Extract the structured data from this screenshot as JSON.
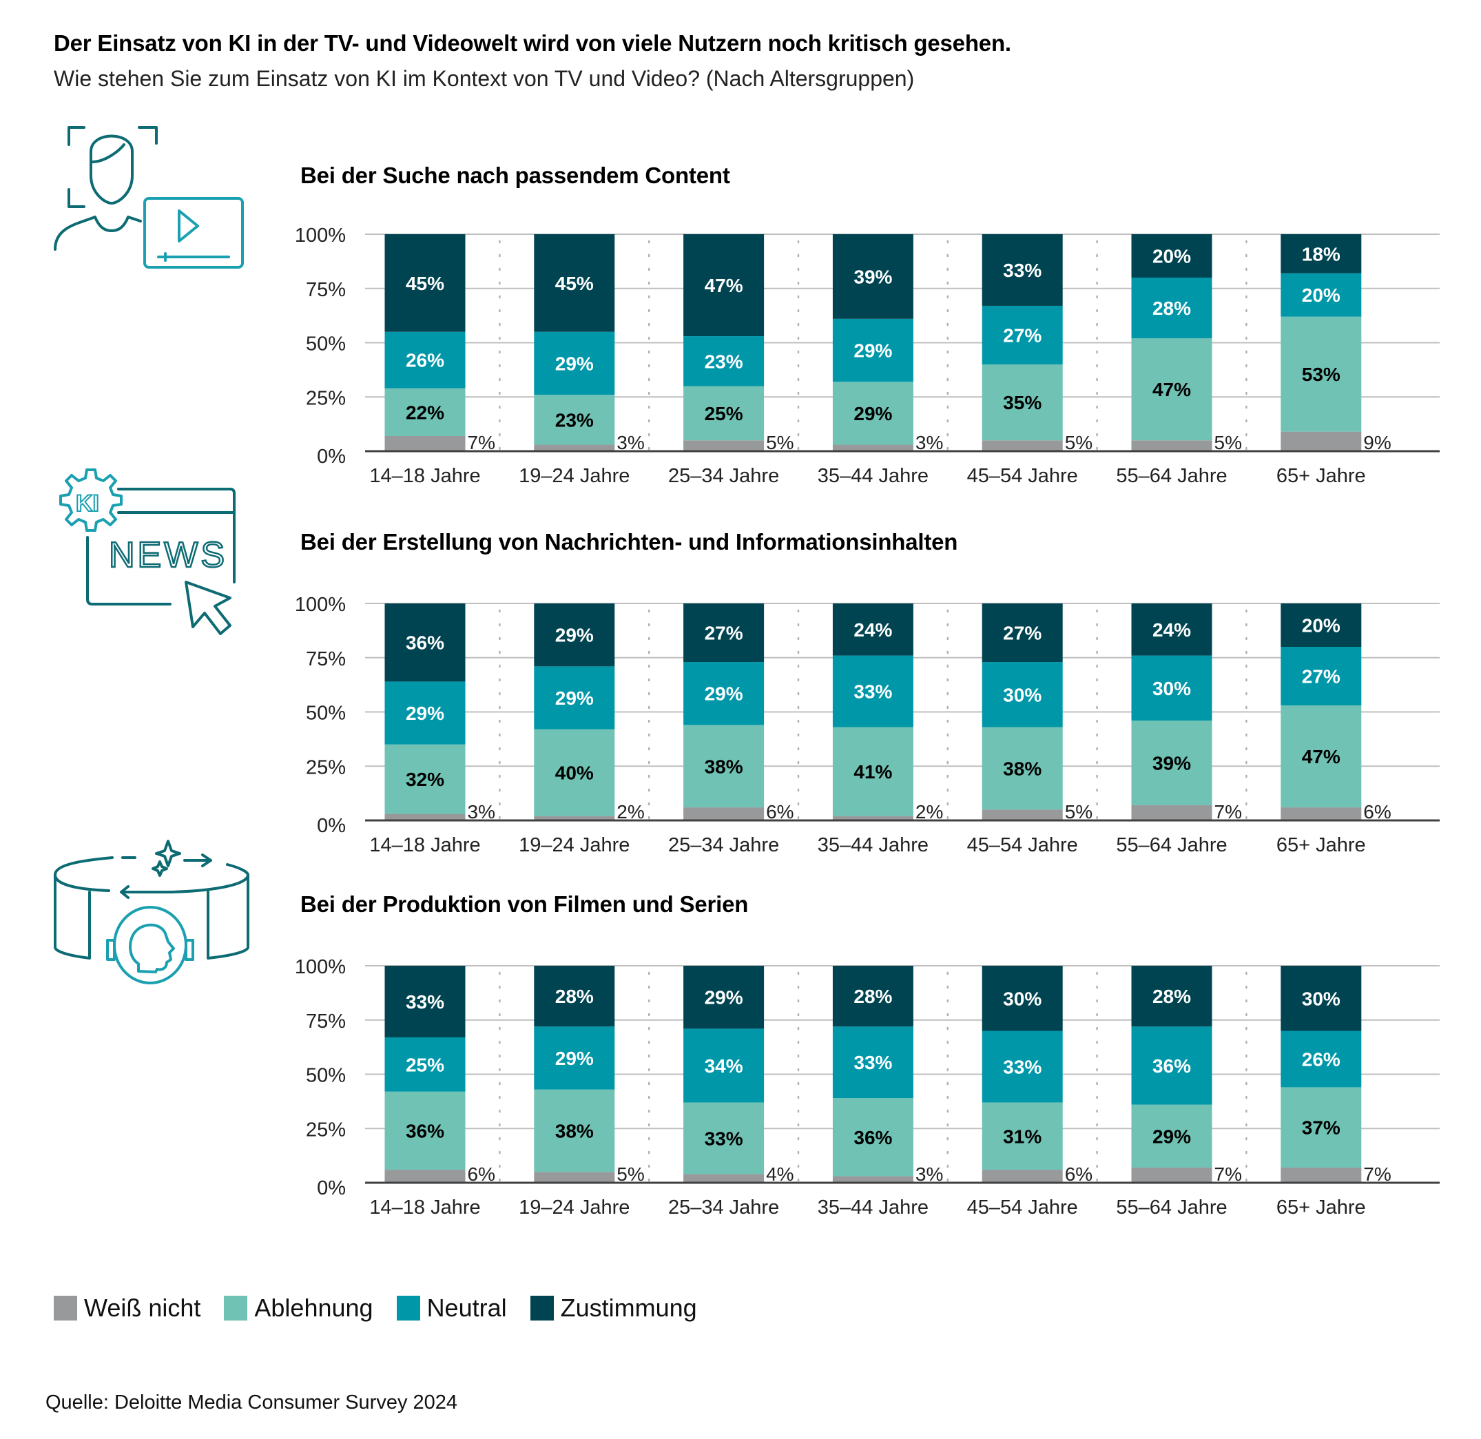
{
  "title": "Der Einsatz von KI in der TV- und Videowelt wird von viele Nutzern noch kritisch gesehen.",
  "subtitle": "Wie stehen Sie zum Einsatz von KI im Kontext von TV und Video? (Nach Altersgruppen)",
  "colors": {
    "weiss_nicht": "#97999b",
    "ablehnung": "#6fc2b4",
    "neutral": "#0097a9",
    "zustimmung": "#004451",
    "icon_dark": "#0d6b73",
    "icon_light": "#1aa0b0",
    "gridline": "#bfbfbf",
    "axis": "#404040"
  },
  "icons": [
    "person-video-icon",
    "ki-news-icon",
    "ai-production-icon"
  ],
  "legend": [
    {
      "key": "weiss_nicht",
      "label": "Weiß nicht"
    },
    {
      "key": "ablehnung",
      "label": "Ablehnung"
    },
    {
      "key": "neutral",
      "label": "Neutral"
    },
    {
      "key": "zustimmung",
      "label": "Zustimmung"
    }
  ],
  "source": "Quelle: Deloitte Media Consumer Survey 2024",
  "chart_data": [
    {
      "type": "bar",
      "stacked": true,
      "title": "Bei der Suche nach passendem Content",
      "categories": [
        "14–18 Jahre",
        "19–24 Jahre",
        "25–34 Jahre",
        "35–44 Jahre",
        "45–54 Jahre",
        "55–64 Jahre",
        "65+ Jahre"
      ],
      "yticks": [
        "0%",
        "25%",
        "50%",
        "75%",
        "100%"
      ],
      "ylim": [
        0,
        100
      ],
      "series": [
        {
          "name": "Weiß nicht",
          "key": "weiss_nicht",
          "values": [
            7,
            3,
            5,
            3,
            5,
            5,
            9
          ]
        },
        {
          "name": "Ablehnung",
          "key": "ablehnung",
          "values": [
            22,
            23,
            25,
            29,
            35,
            47,
            53
          ]
        },
        {
          "name": "Neutral",
          "key": "neutral",
          "values": [
            26,
            29,
            23,
            29,
            27,
            28,
            20
          ]
        },
        {
          "name": "Zustimmung",
          "key": "zustimmung",
          "values": [
            45,
            45,
            47,
            39,
            33,
            20,
            18
          ]
        }
      ]
    },
    {
      "type": "bar",
      "stacked": true,
      "title": "Bei der Erstellung von Nachrichten- und  Informationsinhalten",
      "categories": [
        "14–18 Jahre",
        "19–24 Jahre",
        "25–34 Jahre",
        "35–44 Jahre",
        "45–54 Jahre",
        "55–64 Jahre",
        "65+ Jahre"
      ],
      "yticks": [
        "0%",
        "25%",
        "50%",
        "75%",
        "100%"
      ],
      "ylim": [
        0,
        100
      ],
      "series": [
        {
          "name": "Weiß nicht",
          "key": "weiss_nicht",
          "values": [
            3,
            2,
            6,
            2,
            5,
            7,
            6
          ]
        },
        {
          "name": "Ablehnung",
          "key": "ablehnung",
          "values": [
            32,
            40,
            38,
            41,
            38,
            39,
            47
          ]
        },
        {
          "name": "Neutral",
          "key": "neutral",
          "values": [
            29,
            29,
            29,
            33,
            30,
            30,
            27
          ]
        },
        {
          "name": "Zustimmung",
          "key": "zustimmung",
          "values": [
            36,
            29,
            27,
            24,
            27,
            24,
            20
          ]
        }
      ]
    },
    {
      "type": "bar",
      "stacked": true,
      "title": "Bei der Produktion von Filmen und Serien",
      "categories": [
        "14–18 Jahre",
        "19–24 Jahre",
        "25–34 Jahre",
        "35–44 Jahre",
        "45–54 Jahre",
        "55–64 Jahre",
        "65+ Jahre"
      ],
      "yticks": [
        "0%",
        "25%",
        "50%",
        "75%",
        "100%"
      ],
      "ylim": [
        0,
        100
      ],
      "series": [
        {
          "name": "Weiß nicht",
          "key": "weiss_nicht",
          "values": [
            6,
            5,
            4,
            3,
            6,
            7,
            7
          ]
        },
        {
          "name": "Ablehnung",
          "key": "ablehnung",
          "values": [
            36,
            38,
            33,
            36,
            31,
            29,
            37
          ]
        },
        {
          "name": "Neutral",
          "key": "neutral",
          "values": [
            25,
            29,
            34,
            33,
            33,
            36,
            26
          ]
        },
        {
          "name": "Zustimmung",
          "key": "zustimmung",
          "values": [
            33,
            28,
            29,
            28,
            30,
            28,
            30
          ]
        }
      ]
    }
  ]
}
